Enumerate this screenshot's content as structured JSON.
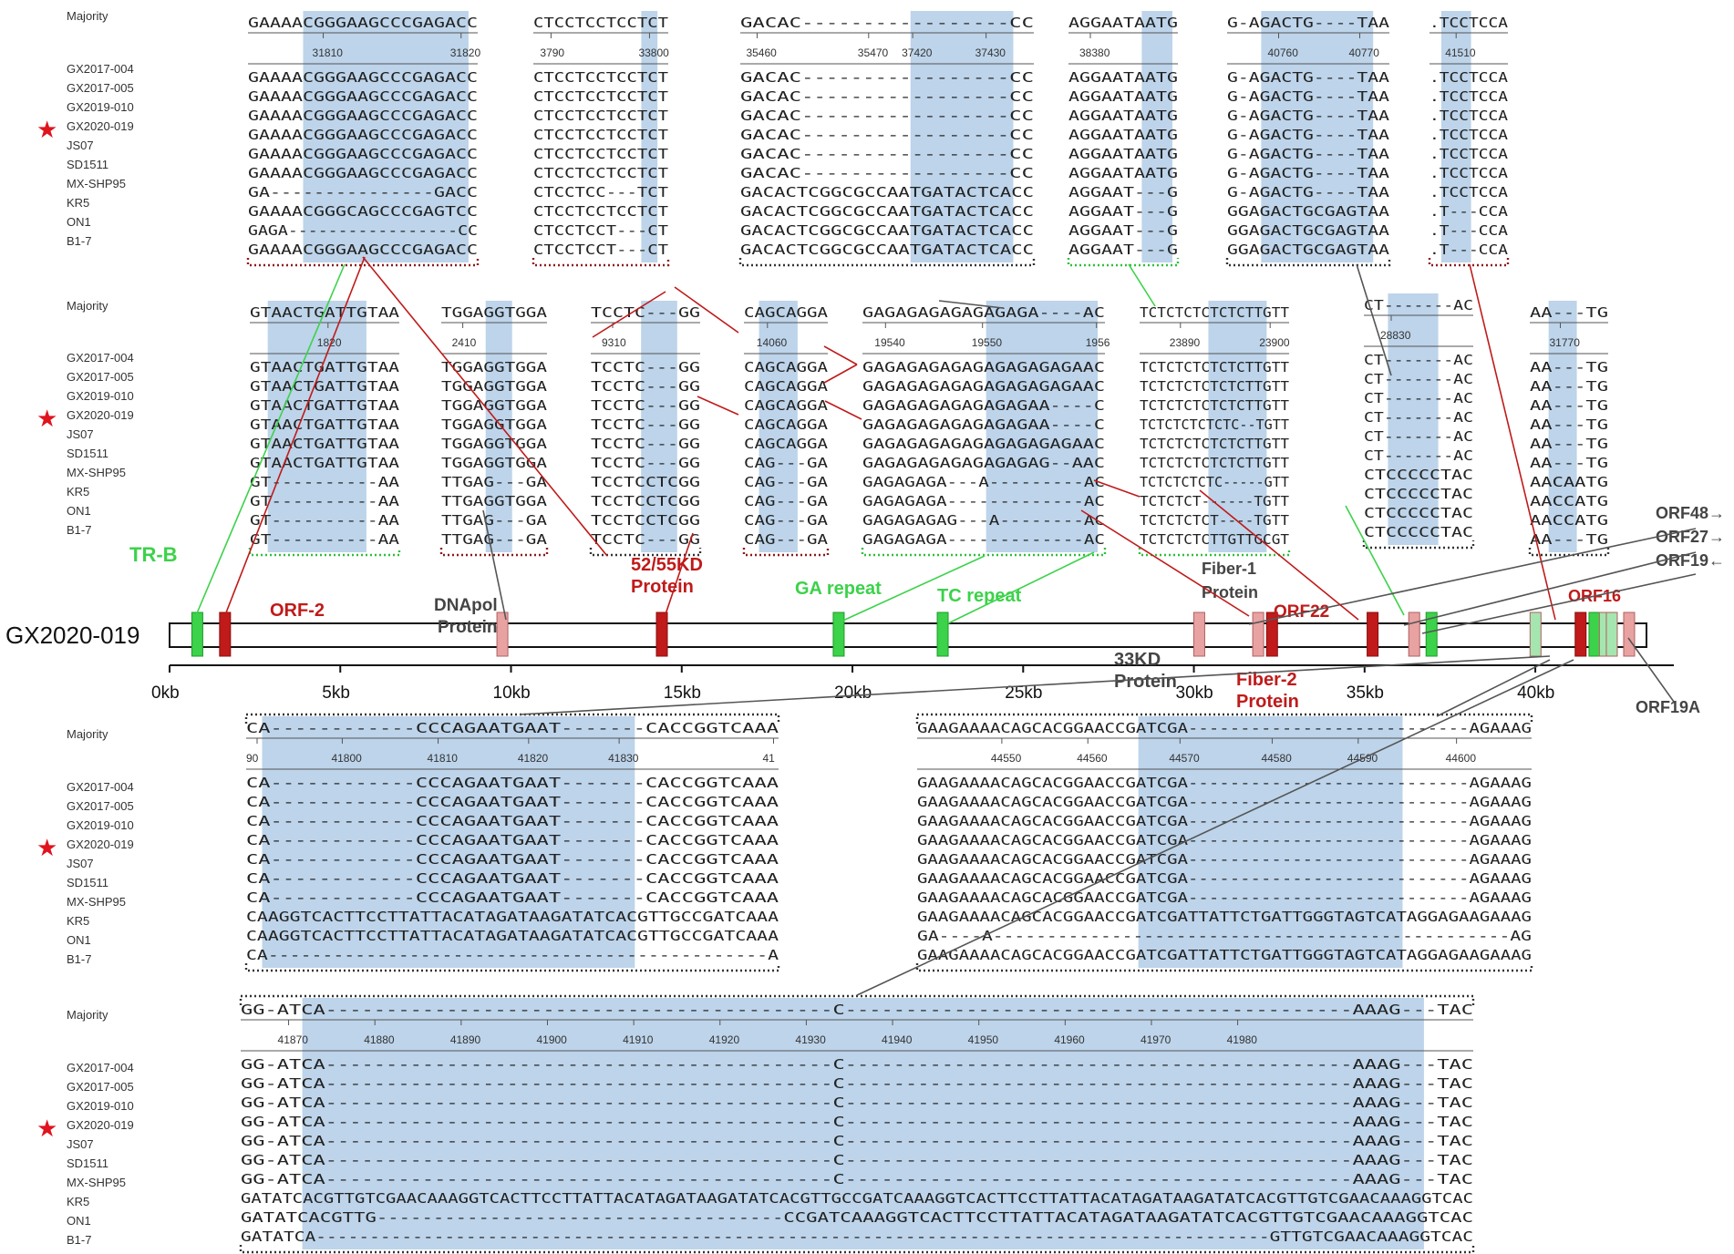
{
  "strain_names": [
    "GX2017-004",
    "GX2017-005",
    "GX2019-010",
    "GX2020-019",
    "JS07",
    "SD1511",
    "MX-SHP95",
    "KR5",
    "ON1",
    "B1-7"
  ],
  "majority_label": "Majority",
  "star_glyph": "★",
  "genome": {
    "name": "GX2020-019",
    "ticks": [
      "0kb",
      "5kb",
      "10kb",
      "15kb",
      "20kb",
      "25kb",
      "30kb",
      "35kb",
      "40kb"
    ],
    "features": [
      {
        "label": "TR-B",
        "color": "#3cd24a"
      },
      {
        "label": "ORF-2",
        "color": "#c01a1a"
      },
      {
        "label": "DNApol",
        "label2": "Protein",
        "color": "#444444"
      },
      {
        "label": "52/55KD",
        "label2": "Protein",
        "color": "#c01a1a"
      },
      {
        "label": "GA repeat",
        "color": "#3cd24a"
      },
      {
        "label": "TC repeat",
        "color": "#3cd24a"
      },
      {
        "label": "Fiber-1",
        "label2": "Protein",
        "color": "#444444"
      },
      {
        "label": "ORF22",
        "color": "#c01a1a"
      },
      {
        "label": "ORF16",
        "color": "#c01a1a"
      },
      {
        "label": "33KD",
        "label2": "Protein",
        "color": "#444444"
      },
      {
        "label": "Fiber-2",
        "label2": "Protein",
        "color": "#c01a1a"
      },
      {
        "label": "ORF19A",
        "color": "#444444"
      },
      {
        "label": "ORF48→",
        "color": "#444444"
      },
      {
        "label": "ORF27→",
        "color": "#444444"
      },
      {
        "label": "ORF19←",
        "color": "#444444"
      }
    ]
  },
  "panels": [
    {
      "majority": "GAAAACGGGAAGCCCGAGACC",
      "positions": [
        "31810",
        "31820"
      ],
      "rows": [
        "GAAAACGGGAAGCCCGAGACC",
        "GAAAACGGGAAGCCCGAGACC",
        "GAAAACGGGAAGCCCGAGACC",
        "GAAAACGGGAAGCCCGAGACC",
        "GAAAACGGGAAGCCCGAGACC",
        "GAAAACGGGAAGCCCGAGACC",
        "GA---------------GACC",
        "GAAAACGGGCAGCCCGAGTCC",
        "GAGA-----------------CC",
        "GAAAACGGGAAGCCCGAGACC"
      ]
    },
    {
      "majority": "CTCCTCCTCCTCT",
      "positions": [
        "3790",
        "33800"
      ],
      "rows": [
        "CTCCTCCTCCTCT",
        "CTCCTCCTCCTCT",
        "CTCCTCCTCCTCT",
        "CTCCTCCTCCTCT",
        "CTCCTCCTCCTCT",
        "CTCCTCCTCCTCT",
        "CTCCTCC---TCT",
        "CTCCTCCTCCTCT",
        "CTCCTCCT---CT",
        "CTCCTCCT---CT"
      ]
    },
    {
      "majority": "GACAC-----------------CC",
      "positions": [
        "35460",
        "35470",
        "37420",
        "37430"
      ],
      "rows": [
        "GACAC-----------------CC",
        "GACAC-----------------CC",
        "GACAC-----------------CC",
        "GACAC-----------------CC",
        "GACAC-----------------CC",
        "GACAC-----------------CC",
        "GACACTCGGCGCCAATGATACTCACC",
        "GACACTCGGCGCCAATGATACTCACC",
        "GACACTCGGCGCCAATGATACTCACC",
        "GACACTCGGCGCCAATGATACTCACC"
      ]
    },
    {
      "majority": "AGGAATAATG",
      "positions": [
        "38380"
      ],
      "rows": [
        "AGGAATAATG",
        "AGGAATAATG",
        "AGGAATAATG",
        "AGGAATAATG",
        "AGGAATAATG",
        "AGGAATAATG",
        "AGGAAT---G",
        "AGGAAT---G",
        "AGGAAT---G",
        "AGGAAT---G"
      ]
    },
    {
      "majority": "G-AGACTG----TAA",
      "positions": [
        "40760",
        "40770"
      ],
      "rows": [
        "G-AGACTG----TAA",
        "G-AGACTG----TAA",
        "G-AGACTG----TAA",
        "G-AGACTG----TAA",
        "G-AGACTG----TAA",
        "G-AGACTG----TAA",
        "G-AGACTG----TAA",
        "GGAGACTGCGAGTAA",
        "GGAGACTGCGAGTAA",
        "GGAGACTGCGAGTAA"
      ]
    },
    {
      "majority": ".TCCTCCA",
      "positions": [
        "41510"
      ],
      "rows": [
        ".TCCTCCA",
        ".TCCTCCA",
        ".TCCTCCA",
        ".TCCTCCA",
        ".TCCTCCA",
        ".TCCTCCA",
        ".TCCTCCA",
        ".T---CCA",
        ".T---CCA",
        ".T---CCA"
      ]
    },
    {
      "majority": "GTAACTGATTGTAA",
      "positions": [
        "1820"
      ],
      "rows": [
        "GTAACTGATTGTAA",
        "GTAACTGATTGTAA",
        "GTAACTGATTGTAA",
        "GTAACTGATTGTAA",
        "GTAACTGATTGTAA",
        "GTAACTGATTGTAA",
        "GT----------AA",
        "GT----------AA",
        "GT----------AA",
        "GT----------AA"
      ]
    },
    {
      "majority": "TGGAGGTGGA",
      "positions": [
        "2410"
      ],
      "rows": [
        "TGGAGGTGGA",
        "TGGAGGTGGA",
        "TGGAGGTGGA",
        "TGGAGGTGGA",
        "TGGAGGTGGA",
        "TGGAGGTGGA",
        "TTGAG---GA",
        "TTGAGGTGGA",
        "TTGAG---GA",
        "TTGAG---GA"
      ]
    },
    {
      "majority": "TCCTC---GG",
      "positions": [
        "9310"
      ],
      "rows": [
        "TCCTC---GG",
        "TCCTC---GG",
        "TCCTC---GG",
        "TCCTC---GG",
        "TCCTC---GG",
        "TCCTC---GG",
        "TCCTCCTCGG",
        "TCCTCCTCGG",
        "TCCTCCTCGG",
        "TCCTC---GG"
      ]
    },
    {
      "majority": "CAGCAGGA",
      "positions": [
        "14060"
      ],
      "rows": [
        "CAGCAGGA",
        "CAGCAGGA",
        "CAGCAGGA",
        "CAGCAGGA",
        "CAGCAGGA",
        "CAG---GA",
        "CAG---GA",
        "CAG---GA",
        "CAG---GA",
        "CAG---GA"
      ]
    },
    {
      "majority": "GAGAGAGAGAGAGAGA----AC",
      "positions": [
        "19540",
        "19550",
        "1956"
      ],
      "rows": [
        "GAGAGAGAGAGAGAGAGAGAAC",
        "GAGAGAGAGAGAGAGAGAGAAC",
        "GAGAGAGAGAGAGAGAA----C",
        "GAGAGAGAGAGAGAGAA----C",
        "GAGAGAGAGAGAGAGAGAGAAC",
        "GAGAGAGAGAGAGAGAG--AAC",
        "GAGAGAGA---A---------AC",
        "GAGAGAGA-------------AC",
        "GAGAGAGAG---A--------AC",
        "GAGAGAGA-------------AC"
      ]
    },
    {
      "majority": "TCTCTCTCTCTCTTGTT",
      "positions": [
        "23890",
        "23900"
      ],
      "rows": [
        "TCTCTCTCTCTCTTGTT",
        "TCTCTCTCTCTCTTGTT",
        "TCTCTCTCTCTCTTGTT",
        "TCTCTCTCTCTC--TGTT",
        "TCTCTCTCTCTCTTGTT",
        "TCTCTCTCTCTCTTGTT",
        "TCTCTCTCTC-----GTT",
        "TCTCTCT------TGTT",
        "TCTCTCTCT----TGTT",
        "TCTCTCTCTTGTTGCGT"
      ]
    },
    {
      "majority": "CT-------AC",
      "positions": [
        "28830"
      ],
      "rows": [
        "CT-------AC",
        "CT-------AC",
        "CT-------AC",
        "CT-------AC",
        "CT-------AC",
        "CT-------AC",
        "CTCCCCCTAC",
        "CTCCCCCTAC",
        "CTCCCCCTAC",
        "CTCCCCCTAC"
      ]
    },
    {
      "majority": "AA---TG",
      "positions": [
        "31770"
      ],
      "rows": [
        "AA---TG",
        "AA---TG",
        "AA---TG",
        "AA---TG",
        "AA---TG",
        "AA---TG",
        "AACAATG",
        "AACCATG",
        "AACCATG",
        "AA---TG"
      ]
    },
    {
      "majority": "CA------------CCCAGAATGAAT-------CACCGGTCAAA",
      "positions": [
        "90",
        "41800",
        "41810",
        "41820",
        "41830",
        "41"
      ],
      "rows": [
        "CA------------CCCAGAATGAAT-------CACCGGTCAAA",
        "CA------------CCCAGAATGAAT-------CACCGGTCAAA",
        "CA------------CCCAGAATGAAT-------CACCGGTCAAA",
        "CA------------CCCAGAATGAAT-------CACCGGTCAAA",
        "CA------------CCCAGAATGAAT-------CACCGGTCAAA",
        "CA------------CCCAGAATGAAT-------CACCGGTCAAA",
        "CA------------CCCAGAATGAAT-------CACCGGTCAAA",
        "CAAGGTCACTTCCTTATTACATAGATAAGATATCACGTTGCCGATCAAA",
        "CAAGGTCACTTCCTTATTACATAGATAAGATATCACGTTGCCGATCAAA",
        "CA----------------------------------------------A"
      ]
    },
    {
      "majority": "GAAGAAAACAGCACGGAACCGATCGA---------------------------AGAAAG",
      "positions": [
        "44550",
        "44560",
        "44570",
        "44580",
        "44590",
        "44600"
      ],
      "rows": [
        "GAAGAAAACAGCACGGAACCGATCGA---------------------------AGAAAG",
        "GAAGAAAACAGCACGGAACCGATCGA---------------------------AGAAAG",
        "GAAGAAAACAGCACGGAACCGATCGA---------------------------AGAAAG",
        "GAAGAAAACAGCACGGAACCGATCGA---------------------------AGAAAG",
        "GAAGAAAACAGCACGGAACCGATCGA---------------------------AGAAAG",
        "GAAGAAAACAGCACGGAACCGATCGA---------------------------AGAAAG",
        "GAAGAAAACAGCACGGAACCGATCGA---------------------------AGAAAG",
        "GAAGAAAACAGCACGGAACCGATCGATTATTCTGATTGGGTAGTCATAGGAGAAGAAAG",
        "GA----A------------------------------------------------AG",
        "GAAGAAAACAGCACGGAACCGATCGATTATTCTGATTGGGTAGTCATAGGAGAAGAAAG"
      ]
    },
    {
      "majority": "GG-ATCA------------------------------------------C------------------------------------------AAAG---TAC",
      "positions": [
        "41870",
        "41880",
        "41890",
        "41900",
        "41910",
        "41920",
        "41930",
        "41940",
        "41950",
        "41960",
        "41970",
        "41980"
      ],
      "rows": [
        "GG-ATCA------------------------------------------C------------------------------------------AAAG---TAC",
        "GG-ATCA------------------------------------------C------------------------------------------AAAG---TAC",
        "GG-ATCA------------------------------------------C------------------------------------------AAAG---TAC",
        "GG-ATCA------------------------------------------C------------------------------------------AAAG---TAC",
        "GG-ATCA------------------------------------------C------------------------------------------AAAG---TAC",
        "GG-ATCA------------------------------------------C------------------------------------------AAAG---TAC",
        "GG-ATCA------------------------------------------C------------------------------------------AAAG---TAC",
        "GATATCACGTTGTCGAACAAAGGTCACTTCCTTATTACATAGATAAGATATCACGTTGCCGATCAAAGGTCACTTCCTTATTACATAGATAAGATATCACGTTGTCGAACAAAGGTCAC",
        "GATATCACGTTG------------------------------------CCGATCAAAGGTCACTTCCTTATTACATAGATAAGATATCACGTTGTCGAACAAAGGTCAC",
        "GATATCA-----------------------------------------------------------------------------------------GTTGTCGAACAAAGGTCAC"
      ]
    }
  ],
  "colors": {
    "red": "#c01a1a",
    "green": "#3cd24a",
    "pink": "#e8a2a2",
    "lightgreen": "#a5e6b0",
    "highlight": "#bdd4ea",
    "dark": "#444444"
  }
}
